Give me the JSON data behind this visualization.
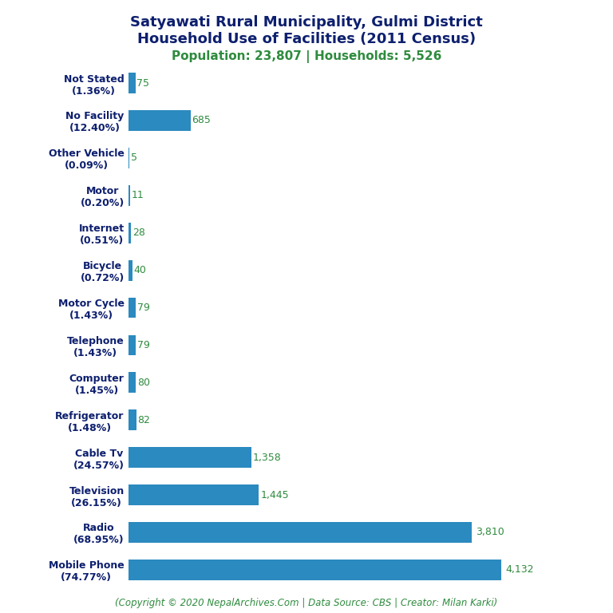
{
  "title_line1": "Satyawati Rural Municipality, Gulmi District",
  "title_line2": "Household Use of Facilities (2011 Census)",
  "subtitle": "Population: 23,807 | Households: 5,526",
  "footer": "(Copyright © 2020 NepalArchives.Com | Data Source: CBS | Creator: Milan Karki)",
  "categories": [
    "Not Stated\n(1.36%)",
    "No Facility\n(12.40%)",
    "Other Vehicle\n(0.09%)",
    "Motor\n(0.20%)",
    "Internet\n(0.51%)",
    "Bicycle\n(0.72%)",
    "Motor Cycle\n(1.43%)",
    "Telephone\n(1.43%)",
    "Computer\n(1.45%)",
    "Refrigerator\n(1.48%)",
    "Cable Tv\n(24.57%)",
    "Television\n(26.15%)",
    "Radio\n(68.95%)",
    "Mobile Phone\n(74.77%)"
  ],
  "values": [
    75,
    685,
    5,
    11,
    28,
    40,
    79,
    79,
    80,
    82,
    1358,
    1445,
    3810,
    4132
  ],
  "value_labels": [
    "75",
    "685",
    "5",
    "11",
    "28",
    "40",
    "79",
    "79",
    "80",
    "82",
    "1,358",
    "1,445",
    "3,810",
    "4,132"
  ],
  "bar_color": "#2b8abf",
  "title_color": "#0d1f6e",
  "subtitle_color": "#2e8b3e",
  "value_color": "#2e8b3e",
  "footer_color": "#2e8b3e",
  "background_color": "#ffffff",
  "title_fontsize": 13,
  "subtitle_fontsize": 11,
  "label_fontsize": 9,
  "value_fontsize": 9,
  "footer_fontsize": 8.5
}
